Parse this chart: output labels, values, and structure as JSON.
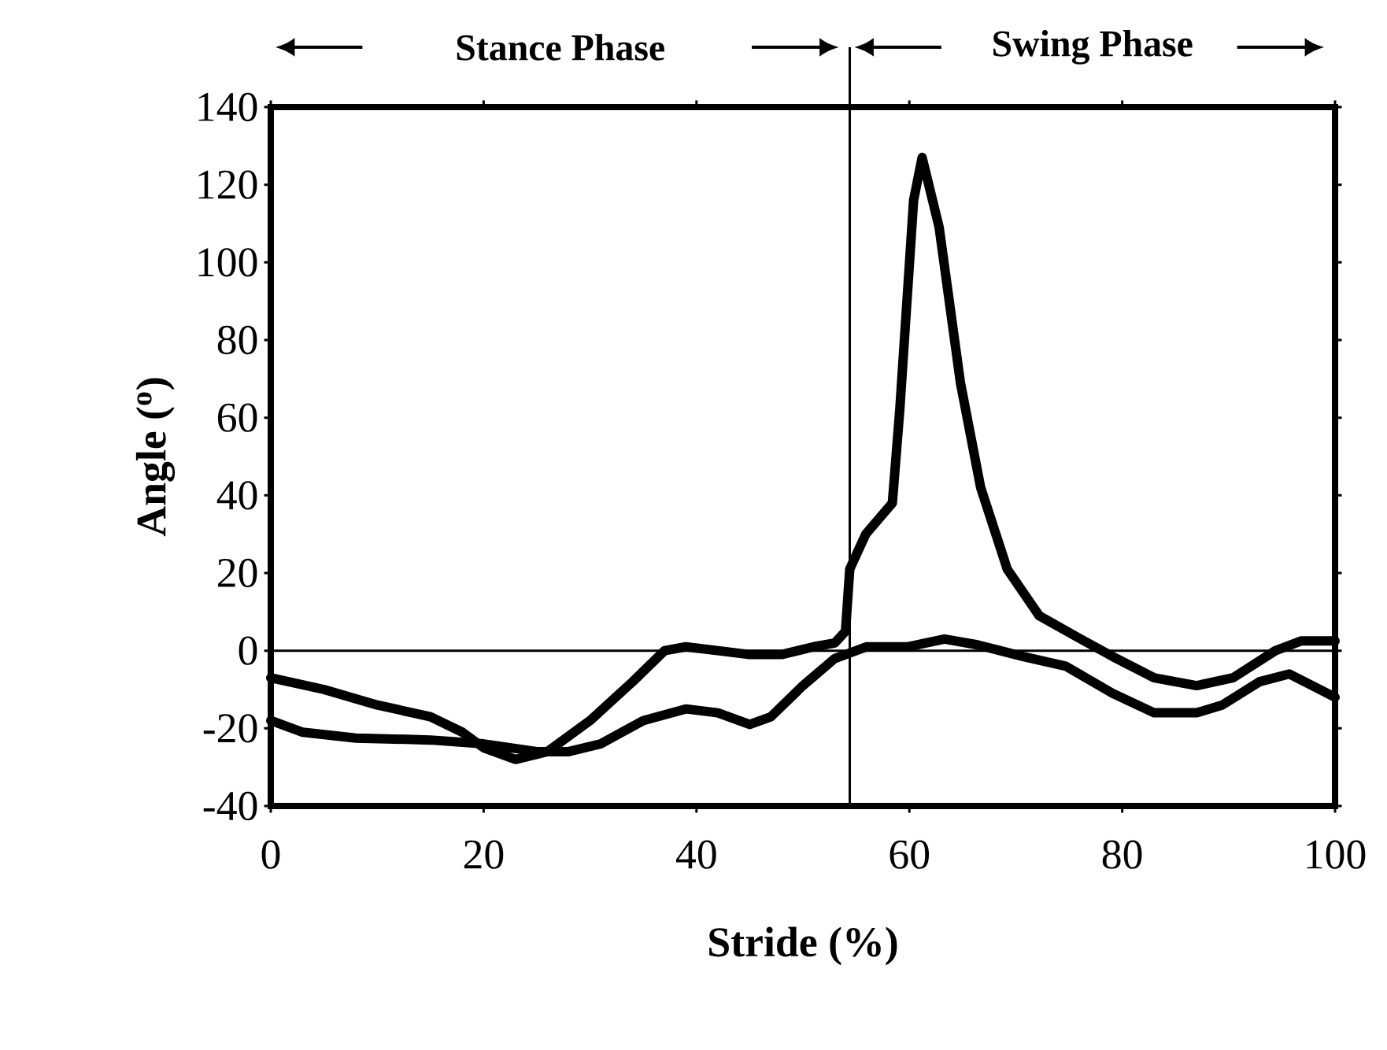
{
  "chart_data": {
    "type": "line",
    "xlabel": "Stride (%)",
    "ylabel": "Angle ($^{o}$)",
    "xlim": [
      0,
      100
    ],
    "xticks": [
      0,
      20,
      40,
      60,
      80,
      100
    ],
    "ylim": [
      -40,
      140
    ],
    "yticks": [
      -40,
      -20,
      0,
      20,
      40,
      60,
      80,
      100,
      120,
      140
    ],
    "grid": false,
    "marker": "none",
    "line_style": "solid",
    "series": [
      {
        "color": "#000000",
        "x": [
          0,
          5,
          10,
          15,
          18,
          20,
          23,
          26,
          30,
          34,
          37,
          39,
          42,
          45,
          48,
          51,
          53,
          54,
          54.4,
          55.9,
          58.4,
          59.1,
          60.4,
          61.2,
          62.8,
          64.8,
          66.7,
          69.2,
          72.2,
          76.1,
          79.1,
          83,
          87,
          90.4,
          94.4,
          96.8,
          100
        ],
        "values": [
          -7,
          -10,
          -14,
          -17,
          -21,
          -25,
          -28,
          -26,
          -18,
          -8,
          0,
          1,
          0,
          -1,
          -1,
          1,
          2,
          5,
          21,
          30,
          38,
          62,
          116,
          127,
          109,
          69,
          42,
          21,
          9,
          3,
          -1.5,
          -7,
          -9,
          -7,
          0,
          2.5,
          2.5
        ]
      },
      {
        "color": "#000000",
        "x": [
          0,
          3,
          8,
          15,
          20,
          25,
          28,
          31,
          35,
          39,
          42,
          45,
          47,
          50,
          53,
          56,
          59.9,
          63.3,
          66.4,
          70.7,
          74.7,
          79.1,
          83,
          87,
          89.4,
          92.9,
          95.7,
          100
        ],
        "values": [
          -18,
          -21,
          -22.5,
          -23,
          -24,
          -26,
          -26,
          -24,
          -18,
          -15,
          -16,
          -19,
          -17,
          -9,
          -2,
          1,
          1,
          3,
          1.5,
          -1.5,
          -4,
          -11,
          -16,
          -16,
          -14,
          -8,
          -6,
          -12
        ]
      }
    ],
    "ref_lines": [
      {
        "axis": "y",
        "value": 0,
        "color": "#000000"
      },
      {
        "axis": "x",
        "value": 54.4,
        "color": "#000000"
      }
    ],
    "annotations": [
      "Stance Phase",
      "Swing Phase"
    ]
  }
}
